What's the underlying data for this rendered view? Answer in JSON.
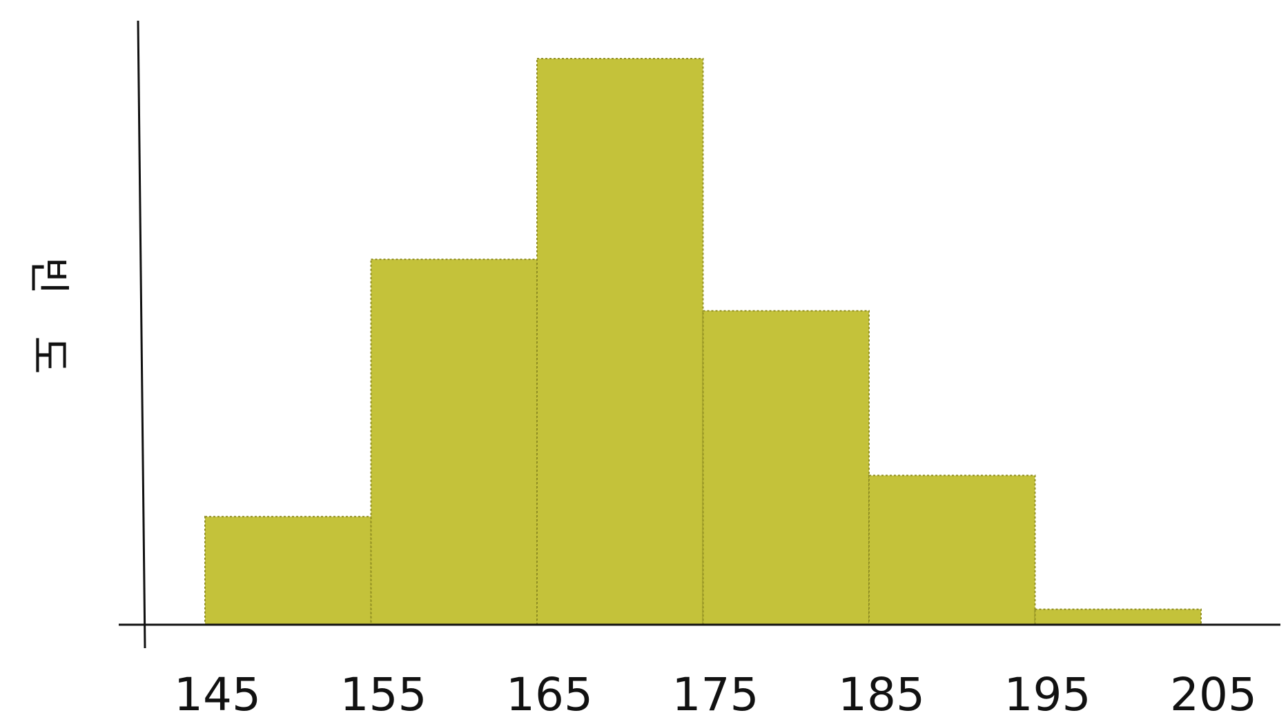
{
  "chart_data": {
    "type": "bar",
    "title": "",
    "xlabel": "",
    "ylabel": "빈도",
    "bin_edges": [
      145,
      155,
      165,
      175,
      185,
      195,
      205
    ],
    "categories": [
      "145-155",
      "155-165",
      "165-175",
      "175-185",
      "185-195",
      "195-205"
    ],
    "values": [
      2.1,
      7.1,
      11.0,
      6.1,
      2.9,
      0.3
    ],
    "x_tick_labels": [
      "145",
      "155",
      "165",
      "175",
      "185",
      "195",
      "205"
    ],
    "xlim": [
      140,
      210
    ],
    "ylim": [
      0,
      12
    ],
    "grid": false,
    "legend": "none",
    "bar_color": "#c4c23a",
    "bar_edge_color": "#8f8d22"
  }
}
